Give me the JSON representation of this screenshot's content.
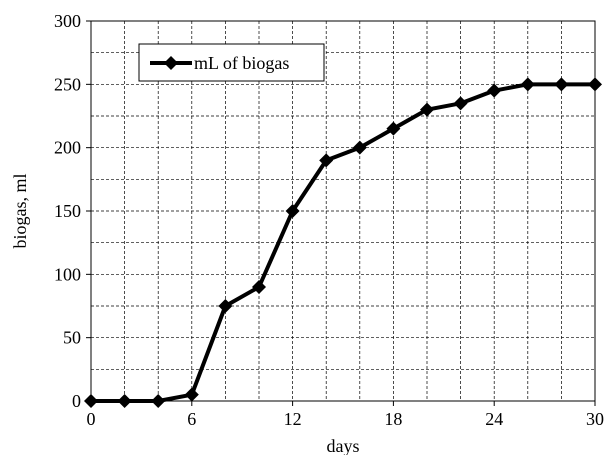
{
  "chart_data": {
    "type": "line",
    "title": "",
    "xlabel": "days",
    "ylabel": "biogas, ml",
    "xlim": [
      0,
      30
    ],
    "ylim": [
      0,
      300
    ],
    "x_ticks": [
      0,
      6,
      12,
      18,
      24,
      30
    ],
    "y_ticks": [
      0,
      50,
      100,
      150,
      200,
      250,
      300
    ],
    "grid": true,
    "legend_position": "top-left",
    "series": [
      {
        "name": "mL of biogas",
        "color": "#000000",
        "marker": "diamond",
        "x": [
          0,
          2,
          4,
          6,
          8,
          10,
          12,
          14,
          16,
          18,
          20,
          22,
          24,
          26,
          28,
          30
        ],
        "y": [
          0,
          0,
          0,
          5,
          75,
          90,
          150,
          190,
          200,
          215,
          230,
          235,
          245,
          250,
          250,
          250
        ]
      }
    ]
  }
}
